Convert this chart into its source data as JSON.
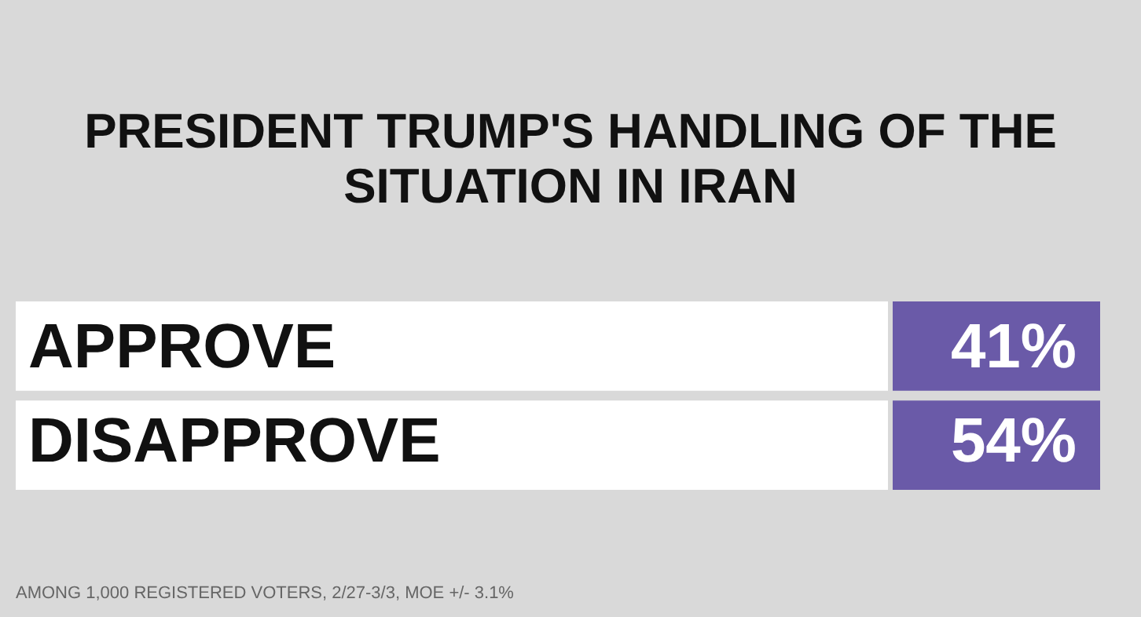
{
  "chart_data": {
    "type": "other",
    "title": "PRESIDENT TRUMP'S HANDLING OF THE SITUATION IN IRAN",
    "categories": [
      "APPROVE",
      "DISAPPROVE"
    ],
    "values": [
      41,
      54
    ],
    "value_labels": [
      "41%",
      "54%"
    ],
    "color": "#6a5aa8",
    "annotations": [
      "AMONG 1,000 REGISTERED VOTERS, 2/27-3/3, MOE +/- 3.1%"
    ]
  }
}
